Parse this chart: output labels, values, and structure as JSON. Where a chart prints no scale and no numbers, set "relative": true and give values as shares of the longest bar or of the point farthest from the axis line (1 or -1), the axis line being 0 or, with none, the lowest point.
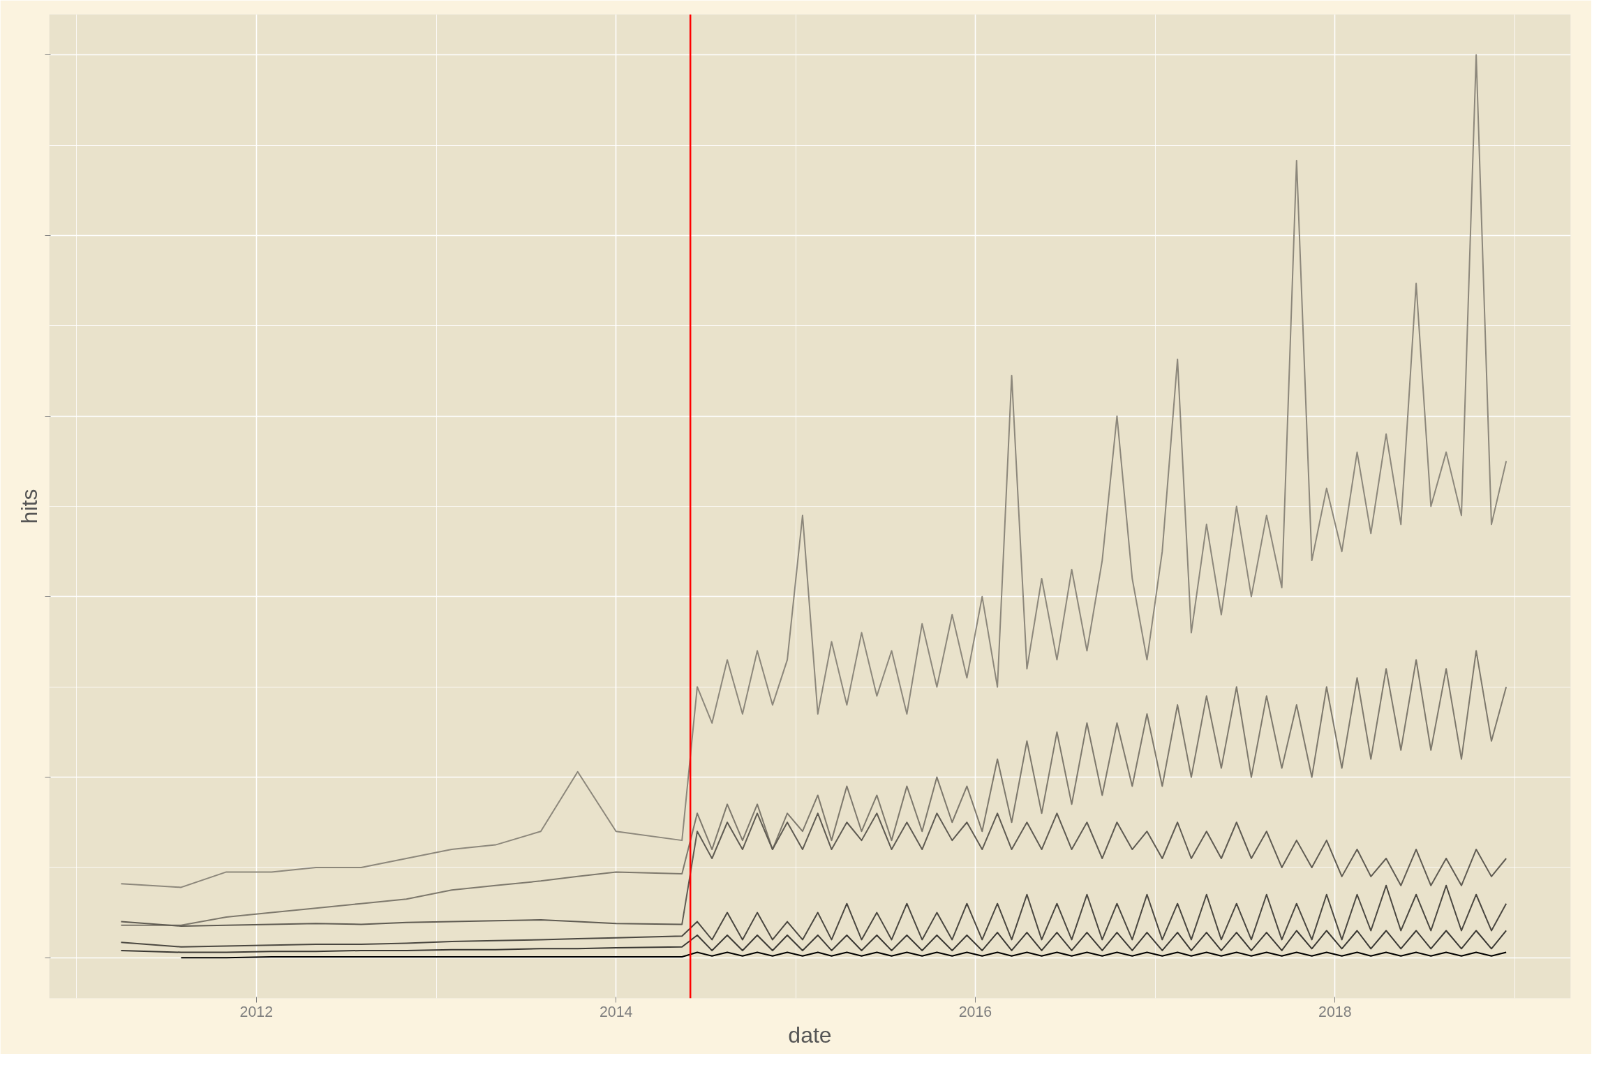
{
  "chart_data": {
    "type": "line",
    "relative": true,
    "xlabel": "date",
    "ylabel": "hits",
    "grid": true,
    "line_style": "solid",
    "xlim": [
      "2010-11-06",
      "2019-04-25"
    ],
    "xticks": [
      {
        "value": "2012-01-01",
        "label": "2012"
      },
      {
        "value": "2014-01-01",
        "label": "2014"
      },
      {
        "value": "2016-01-01",
        "label": "2016"
      },
      {
        "value": "2018-01-01",
        "label": "2018"
      }
    ],
    "ref_lines": [
      {
        "axis": "x",
        "value": "2014-06-01",
        "color": "#ff0000"
      }
    ],
    "x": [
      "2011-04-01",
      "2011-08-01",
      "2011-11-01",
      "2012-02-01",
      "2012-05-01",
      "2012-08-01",
      "2012-11-01",
      "2013-02-01",
      "2013-05-01",
      "2013-08-01",
      "2013-10-15",
      "2014-01-01",
      "2014-05-15",
      "2014-06-15",
      "2014-07-15",
      "2014-08-15",
      "2014-09-15",
      "2014-10-15",
      "2014-11-15",
      "2014-12-15",
      "2015-01-15",
      "2015-02-15",
      "2015-03-15",
      "2015-04-15",
      "2015-05-15",
      "2015-06-15",
      "2015-07-15",
      "2015-08-15",
      "2015-09-15",
      "2015-10-15",
      "2015-11-15",
      "2015-12-15",
      "2016-01-15",
      "2016-02-15",
      "2016-03-15",
      "2016-04-15",
      "2016-05-15",
      "2016-06-15",
      "2016-07-15",
      "2016-08-15",
      "2016-09-15",
      "2016-10-15",
      "2016-11-15",
      "2016-12-15",
      "2017-01-15",
      "2017-02-15",
      "2017-03-15",
      "2017-04-15",
      "2017-05-15",
      "2017-06-15",
      "2017-07-15",
      "2017-08-15",
      "2017-09-15",
      "2017-10-15",
      "2017-11-15",
      "2017-12-15",
      "2018-01-15",
      "2018-02-15",
      "2018-03-15",
      "2018-04-15",
      "2018-05-15",
      "2018-06-15",
      "2018-07-15",
      "2018-08-15",
      "2018-09-15",
      "2018-10-15",
      "2018-11-15",
      "2018-12-15"
    ],
    "series": [
      {
        "color": "#8c877b",
        "values": [
          0.082,
          0.078,
          0.095,
          0.095,
          0.1,
          0.1,
          0.11,
          0.12,
          0.125,
          0.14,
          0.206,
          0.14,
          0.13,
          0.3,
          0.26,
          0.33,
          0.27,
          0.34,
          0.28,
          0.33,
          0.49,
          0.27,
          0.35,
          0.28,
          0.36,
          0.29,
          0.34,
          0.27,
          0.37,
          0.3,
          0.38,
          0.31,
          0.4,
          0.3,
          0.645,
          0.32,
          0.42,
          0.33,
          0.43,
          0.34,
          0.44,
          0.6,
          0.42,
          0.33,
          0.45,
          0.663,
          0.36,
          0.48,
          0.38,
          0.5,
          0.4,
          0.49,
          0.41,
          0.883,
          0.44,
          0.52,
          0.45,
          0.56,
          0.47,
          0.58,
          0.48,
          0.747,
          0.5,
          0.56,
          0.49,
          1.0,
          0.48,
          0.55
        ]
      },
      {
        "color": "#7d786c",
        "values": [
          0.036,
          0.036,
          0.045,
          0.05,
          0.055,
          0.06,
          0.065,
          0.075,
          0.08,
          0.085,
          0.09,
          0.095,
          0.093,
          0.16,
          0.12,
          0.17,
          0.13,
          0.17,
          0.12,
          0.16,
          0.14,
          0.18,
          0.13,
          0.19,
          0.14,
          0.18,
          0.13,
          0.19,
          0.14,
          0.2,
          0.15,
          0.19,
          0.14,
          0.22,
          0.15,
          0.24,
          0.16,
          0.25,
          0.17,
          0.26,
          0.18,
          0.26,
          0.19,
          0.27,
          0.19,
          0.28,
          0.2,
          0.29,
          0.21,
          0.3,
          0.2,
          0.29,
          0.21,
          0.28,
          0.2,
          0.3,
          0.21,
          0.31,
          0.22,
          0.32,
          0.23,
          0.33,
          0.23,
          0.32,
          0.22,
          0.34,
          0.24,
          0.3
        ]
      },
      {
        "color": "#5f5b52",
        "values": [
          0.04,
          0.035,
          0.036,
          0.037,
          0.038,
          0.037,
          0.039,
          0.04,
          0.041,
          0.042,
          0.04,
          0.038,
          0.037,
          0.14,
          0.11,
          0.15,
          0.12,
          0.16,
          0.12,
          0.15,
          0.12,
          0.16,
          0.12,
          0.15,
          0.13,
          0.16,
          0.12,
          0.15,
          0.12,
          0.16,
          0.13,
          0.15,
          0.12,
          0.16,
          0.12,
          0.15,
          0.12,
          0.16,
          0.12,
          0.15,
          0.11,
          0.15,
          0.12,
          0.14,
          0.11,
          0.15,
          0.11,
          0.14,
          0.11,
          0.15,
          0.11,
          0.14,
          0.1,
          0.13,
          0.1,
          0.13,
          0.09,
          0.12,
          0.09,
          0.11,
          0.08,
          0.12,
          0.08,
          0.11,
          0.08,
          0.12,
          0.09,
          0.11
        ]
      },
      {
        "color": "#4a4740",
        "values": [
          0.017,
          0.012,
          0.013,
          0.014,
          0.015,
          0.015,
          0.016,
          0.018,
          0.019,
          0.02,
          0.021,
          0.022,
          0.024,
          0.04,
          0.02,
          0.05,
          0.02,
          0.05,
          0.02,
          0.04,
          0.02,
          0.05,
          0.02,
          0.06,
          0.02,
          0.05,
          0.02,
          0.06,
          0.02,
          0.05,
          0.02,
          0.06,
          0.02,
          0.06,
          0.02,
          0.07,
          0.02,
          0.06,
          0.02,
          0.07,
          0.02,
          0.06,
          0.02,
          0.07,
          0.02,
          0.06,
          0.02,
          0.07,
          0.02,
          0.06,
          0.02,
          0.07,
          0.02,
          0.06,
          0.02,
          0.07,
          0.02,
          0.07,
          0.03,
          0.08,
          0.03,
          0.07,
          0.03,
          0.08,
          0.03,
          0.07,
          0.03,
          0.06
        ]
      },
      {
        "color": "#3a3833",
        "values": [
          0.008,
          0.006,
          0.006,
          0.007,
          0.007,
          0.008,
          0.008,
          0.009,
          0.009,
          0.01,
          0.01,
          0.011,
          0.012,
          0.025,
          0.008,
          0.025,
          0.008,
          0.025,
          0.008,
          0.025,
          0.008,
          0.025,
          0.008,
          0.025,
          0.008,
          0.025,
          0.008,
          0.025,
          0.008,
          0.025,
          0.008,
          0.025,
          0.008,
          0.028,
          0.008,
          0.028,
          0.008,
          0.028,
          0.008,
          0.028,
          0.008,
          0.028,
          0.008,
          0.028,
          0.008,
          0.028,
          0.008,
          0.028,
          0.008,
          0.028,
          0.008,
          0.028,
          0.008,
          0.03,
          0.01,
          0.03,
          0.01,
          0.03,
          0.01,
          0.03,
          0.01,
          0.03,
          0.01,
          0.03,
          0.01,
          0.03,
          0.01,
          0.03
        ]
      },
      {
        "color": "#000000",
        "values": [
          null,
          0.0,
          0.0,
          0.001,
          0.001,
          0.001,
          0.001,
          0.001,
          0.001,
          0.001,
          0.001,
          0.001,
          0.001,
          0.006,
          0.002,
          0.006,
          0.002,
          0.006,
          0.002,
          0.006,
          0.002,
          0.006,
          0.002,
          0.006,
          0.002,
          0.006,
          0.002,
          0.006,
          0.002,
          0.006,
          0.002,
          0.006,
          0.002,
          0.006,
          0.002,
          0.006,
          0.002,
          0.006,
          0.002,
          0.006,
          0.002,
          0.006,
          0.002,
          0.006,
          0.002,
          0.006,
          0.002,
          0.006,
          0.002,
          0.006,
          0.002,
          0.006,
          0.002,
          0.006,
          0.002,
          0.006,
          0.002,
          0.006,
          0.002,
          0.006,
          0.002,
          0.006,
          0.002,
          0.006,
          0.002,
          0.006,
          0.002,
          0.006
        ]
      }
    ]
  }
}
